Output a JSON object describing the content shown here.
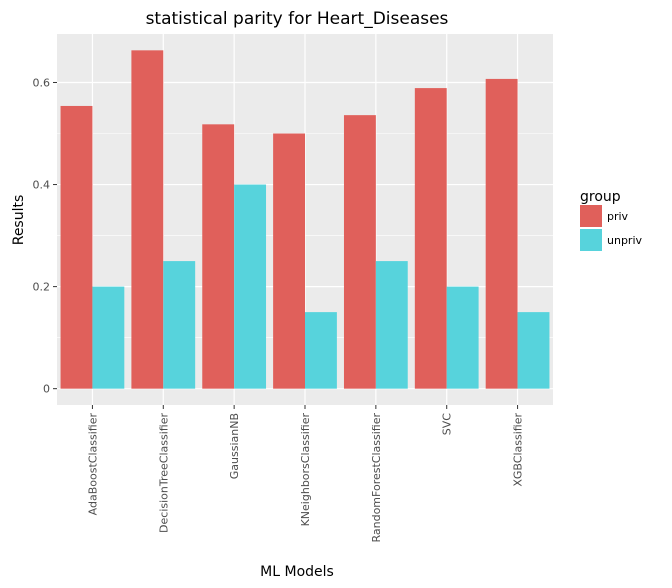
{
  "chart_data": {
    "type": "bar",
    "title": "statistical parity for Heart_Diseases",
    "xlabel": "ML Models",
    "ylabel": "Results",
    "categories": [
      "AdaBoostClassifier",
      "DecisionTreeClassifier",
      "GaussianNB",
      "KNeighborsClassifier",
      "RandomForestClassifier",
      "SVC",
      "XGBClassifier"
    ],
    "series": [
      {
        "name": "priv",
        "color": "#E0605B",
        "values": [
          0.554,
          0.663,
          0.518,
          0.5,
          0.536,
          0.589,
          0.607
        ]
      },
      {
        "name": "unpriv",
        "color": "#57D3DC",
        "values": [
          0.2,
          0.25,
          0.4,
          0.15,
          0.25,
          0.2,
          0.15
        ]
      }
    ],
    "ylim": [
      -0.032,
      0.695
    ],
    "yticks": [
      0,
      0.2,
      0.4,
      0.6
    ],
    "ytick_labels": [
      "0",
      "0.2",
      "0.4",
      "0.6"
    ],
    "grid": true,
    "legend": {
      "title": "group",
      "placement": "right"
    },
    "panel_color": "#EBEBEB",
    "grid_color": "#FFFFFF"
  }
}
